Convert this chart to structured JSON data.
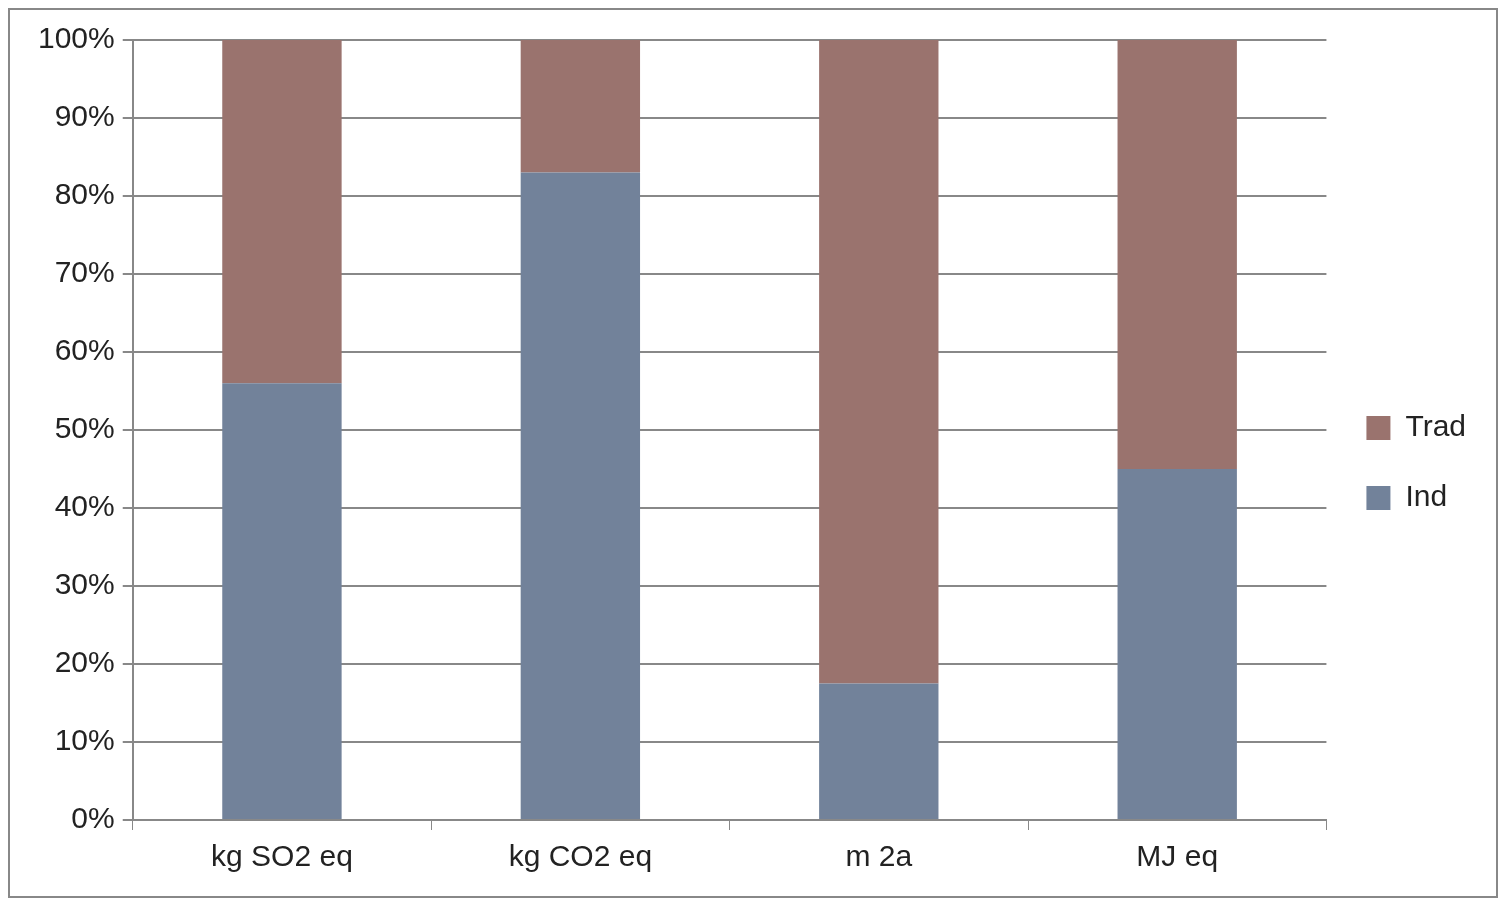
{
  "chart_data": {
    "type": "bar",
    "stacked": true,
    "categories": [
      "kg SO2 eq",
      "kg CO2 eq",
      "m 2a",
      "MJ eq"
    ],
    "series": [
      {
        "name": "Ind",
        "color": "#72829a",
        "values": [
          56,
          83,
          17.5,
          45
        ]
      },
      {
        "name": "Trad",
        "color": "#9a736e",
        "values": [
          44,
          17,
          82.5,
          55
        ]
      }
    ],
    "ylim": [
      0,
      100
    ],
    "yticks": [
      {
        "value": 0,
        "label": "0%"
      },
      {
        "value": 10,
        "label": "10%"
      },
      {
        "value": 20,
        "label": "20%"
      },
      {
        "value": 30,
        "label": "30%"
      },
      {
        "value": 40,
        "label": "40%"
      },
      {
        "value": 50,
        "label": "50%"
      },
      {
        "value": 60,
        "label": "60%"
      },
      {
        "value": 70,
        "label": "70%"
      },
      {
        "value": 80,
        "label": "80%"
      },
      {
        "value": 90,
        "label": "90%"
      },
      {
        "value": 100,
        "label": "100%"
      }
    ],
    "grid": "y",
    "legend": "right"
  }
}
